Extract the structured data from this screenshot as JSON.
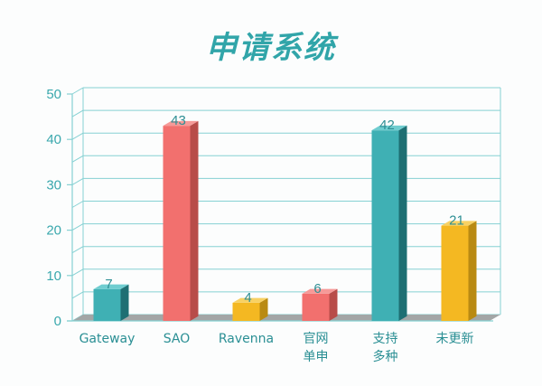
{
  "chart_data": {
    "type": "bar",
    "title": "申请系统",
    "categories": [
      "Gateway",
      "SAO",
      "Ravenna",
      "官网\n单申",
      "支持\n多种",
      "未更新"
    ],
    "values": [
      7,
      43,
      4,
      6,
      42,
      21
    ],
    "ylim": [
      0,
      50
    ],
    "yticks": [
      0,
      10,
      20,
      30,
      40,
      50
    ],
    "xlabel": "",
    "ylabel": "",
    "grid": true,
    "bar_colors": [
      "#3fb0b4",
      "#f2706e",
      "#f4b822",
      "#f2706e",
      "#3fb0b4",
      "#f4b822"
    ],
    "bar_dark_colors": [
      "#1e6f73",
      "#b84c49",
      "#b98a12",
      "#b84c49",
      "#1e6f73",
      "#b98a12"
    ],
    "bar_top_colors": [
      "#6fcdd0",
      "#f69a98",
      "#f8d163",
      "#f69a98",
      "#6fcdd0",
      "#f8d163"
    ]
  },
  "colors": {
    "title": "#31a5a9",
    "axis": "#86d1d3",
    "tick_text": "#3aa8ad",
    "category_text": "#2a8f94",
    "value_text": "#2e8f94",
    "floor": "#a3a6a6"
  }
}
